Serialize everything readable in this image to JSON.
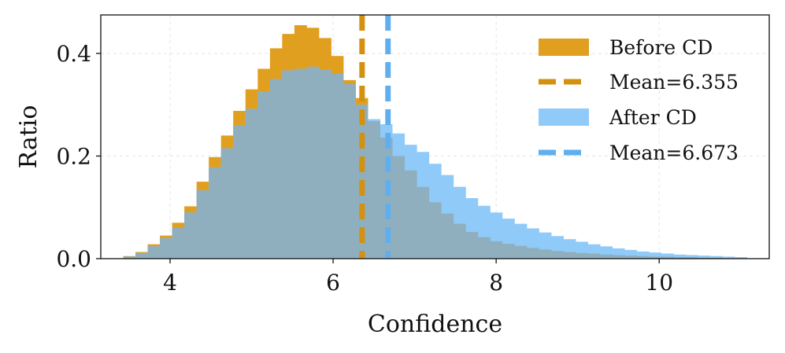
{
  "chart_data": {
    "type": "bar",
    "title": "",
    "xlabel": "Confidence",
    "ylabel": "Ratio",
    "xlim": [
      3.15,
      11.35
    ],
    "ylim": [
      0,
      0.475
    ],
    "xticks": [
      4,
      6,
      8,
      10
    ],
    "xtick_labels": [
      "4",
      "6",
      "8",
      "10"
    ],
    "yticks": [
      0.0,
      0.2,
      0.4
    ],
    "ytick_labels": [
      "0.0",
      "0.2",
      "0.4"
    ],
    "grid": true,
    "legend_position": "top-right",
    "x": [
      3.5,
      3.65,
      3.8,
      3.95,
      4.1,
      4.25,
      4.4,
      4.55,
      4.7,
      4.85,
      5.0,
      5.15,
      5.3,
      5.45,
      5.6,
      5.75,
      5.9,
      6.05,
      6.2,
      6.35,
      6.5,
      6.65,
      6.8,
      6.95,
      7.1,
      7.25,
      7.4,
      7.55,
      7.7,
      7.85,
      8.0,
      8.15,
      8.3,
      8.45,
      8.6,
      8.75,
      8.9,
      9.05,
      9.2,
      9.35,
      9.5,
      9.65,
      9.8,
      9.95,
      10.1,
      10.25,
      10.4,
      10.55,
      10.7,
      10.85,
      11.0
    ],
    "series": [
      {
        "name": "Before CD",
        "color": "#E09F1F",
        "values": [
          0.005,
          0.013,
          0.028,
          0.045,
          0.07,
          0.102,
          0.15,
          0.198,
          0.24,
          0.288,
          0.33,
          0.37,
          0.41,
          0.438,
          0.455,
          0.45,
          0.43,
          0.395,
          0.348,
          0.313,
          0.268,
          0.236,
          0.2,
          0.172,
          0.14,
          0.11,
          0.088,
          0.068,
          0.052,
          0.042,
          0.034,
          0.029,
          0.025,
          0.021,
          0.018,
          0.015,
          0.013,
          0.011,
          0.01,
          0.008,
          0.007,
          0.006,
          0.005,
          0.004,
          0.004,
          0.003,
          0.003,
          0.002,
          0.002,
          0.001,
          0.0
        ]
      },
      {
        "name": "After CD",
        "color": "#90CAF9",
        "values": [
          0.004,
          0.011,
          0.024,
          0.04,
          0.06,
          0.09,
          0.133,
          0.178,
          0.215,
          0.26,
          0.292,
          0.325,
          0.35,
          0.367,
          0.37,
          0.374,
          0.368,
          0.36,
          0.34,
          0.3,
          0.272,
          0.262,
          0.244,
          0.222,
          0.208,
          0.185,
          0.163,
          0.14,
          0.118,
          0.103,
          0.09,
          0.078,
          0.068,
          0.059,
          0.051,
          0.044,
          0.038,
          0.033,
          0.028,
          0.024,
          0.02,
          0.017,
          0.014,
          0.012,
          0.01,
          0.008,
          0.007,
          0.006,
          0.005,
          0.004,
          0.003
        ]
      }
    ],
    "bin_width": 0.15,
    "mean_lines": [
      {
        "label": "Mean=6.355",
        "x": 6.355,
        "color": "#D4900F"
      },
      {
        "label": "Mean=6.673",
        "x": 6.673,
        "color": "#5FAFEF"
      }
    ],
    "overlap_color": "#8FAFBF",
    "legend": [
      "Before CD",
      "Mean=6.355",
      "After CD",
      "Mean=6.673"
    ]
  }
}
